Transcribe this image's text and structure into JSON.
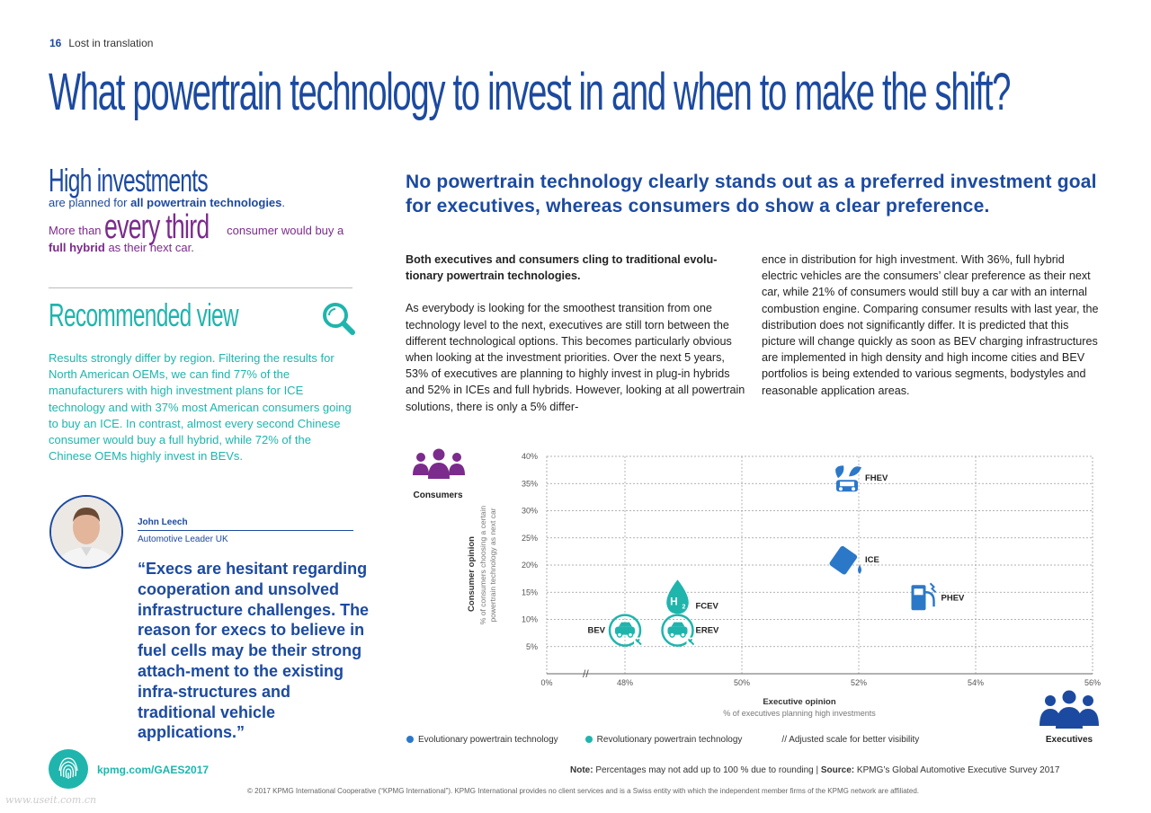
{
  "header": {
    "page_number": "16",
    "section": "Lost in translation"
  },
  "title": "What powertrain technology to invest in and when to make the shift?",
  "sidebar": {
    "high_investments_title": "High investments",
    "high_investments_pre": "are planned for ",
    "high_investments_bold": "all powertrain technologies",
    "high_investments_post": ".",
    "third_pre": "More than ",
    "third_big": "every third",
    "third_post": " consumer would buy a",
    "third_bold": "full hybrid",
    "third_end": " as their next car.",
    "recommended_title": "Recommended view",
    "recommended_body": "Results strongly differ by region. Filtering the results for North American OEMs, we can find 77% of the manufacturers with high investment plans for ICE technology and with 37% most American consumers going to buy an ICE. In contrast, almost every second Chinese consumer would buy a full hybrid, while 72% of the Chinese OEMs highly invest in BEVs."
  },
  "quote": {
    "name": "John Leech",
    "role": "Automotive Leader UK",
    "text": "“Execs are hesitant regarding cooperation and unsolved infrastructure challenges. The reason for execs to believe in fuel cells may be their strong attach-ment to the existing infra-structures and traditional vehicle applications.”"
  },
  "footer": {
    "link": "kpmg.com/GAES2017",
    "note_label": "Note:",
    "note_text": " Percentages may not add up to 100 % due to rounding | ",
    "source_label": "Source:",
    "source_text": " KPMG’s Global Automotive Executive Survey 2017",
    "copyright": "© 2017 KPMG International Cooperative (“KPMG International”). KPMG International provides no client services and is a Swiss entity with which the independent member firms of the KPMG network are affiliated.",
    "watermark": "www.useit.com.cn"
  },
  "article": {
    "headline": "No powertrain technology clearly stands out as a preferred investment goal for executives, whereas consumers do show a clear preference.",
    "lead": "Both executives and consumers cling to traditional evolu-tionary powertrain technologies.",
    "col1_body": "As everybody is looking for the smoothest transition from one technology level to the next, executives are still torn between the different technological options. This becomes particularly obvious when looking at the investment priorities. Over the next 5 years, 53% of executives are planning to highly invest in plug-in hybrids and 52% in ICEs and full hybrids. However, looking at all powertrain solutions, there is only a 5% differ-",
    "col2_body": "ence in distribution for high investment. With 36%, full hybrid electric vehicles are the consumers’ clear preference as their next car, while 21% of consumers would still buy a car with an internal combustion engine. Comparing consumer results with last year, the distribution does not significantly differ. It is predicted that this picture will change quickly as soon as BEV charging infrastructures are implemented in high density and high income cities and BEV portfolios is being extended to various segments, bodystyles and reasonable application areas."
  },
  "chart_data": {
    "type": "scatter",
    "xlabel": "Executive opinion",
    "xlabel_sub": "% of executives planning high investments",
    "ylabel": "Consumer opinion",
    "ylabel_sub1": "% of consumers choosing a certain",
    "ylabel_sub2": "powertrain technology as next car",
    "x_ticks": [
      "0%",
      "48%",
      "50%",
      "52%",
      "54%",
      "56%"
    ],
    "y_ticks": [
      "5%",
      "10%",
      "15%",
      "20%",
      "25%",
      "30%",
      "35%",
      "40%"
    ],
    "xlim": [
      46,
      56
    ],
    "ylim": [
      0,
      40
    ],
    "axis_break": "//",
    "consumers_label": "Consumers",
    "executives_label": "Executives",
    "points": [
      {
        "name": "FHEV",
        "x": 51.8,
        "y": 36,
        "category": "evolutionary",
        "icon": "car-leaf-icon"
      },
      {
        "name": "ICE",
        "x": 51.8,
        "y": 21,
        "category": "evolutionary",
        "icon": "fuel-can-icon"
      },
      {
        "name": "PHEV",
        "x": 53.1,
        "y": 14,
        "category": "evolutionary",
        "icon": "charging-pump-icon"
      },
      {
        "name": "FCEV",
        "x": 48.9,
        "y": 14,
        "category": "revolutionary",
        "icon": "hydrogen-drop-icon"
      },
      {
        "name": "BEV",
        "x": 48.0,
        "y": 8,
        "category": "revolutionary",
        "icon": "electric-car-icon"
      },
      {
        "name": "EREV",
        "x": 48.9,
        "y": 8,
        "category": "revolutionary",
        "icon": "electric-car-icon"
      }
    ],
    "legend": [
      {
        "label": "Evolutionary powertrain technology",
        "color": "#2b78c9"
      },
      {
        "label": "Revolutionary powertrain technology",
        "color": "#1fb5ad"
      },
      {
        "label": "// Adjusted scale for better visibility",
        "color": ""
      }
    ],
    "colors": {
      "evolutionary": "#2b78c9",
      "revolutionary": "#1fb5ad",
      "people": "#7b2b8c",
      "executives": "#1c4aa0"
    }
  }
}
